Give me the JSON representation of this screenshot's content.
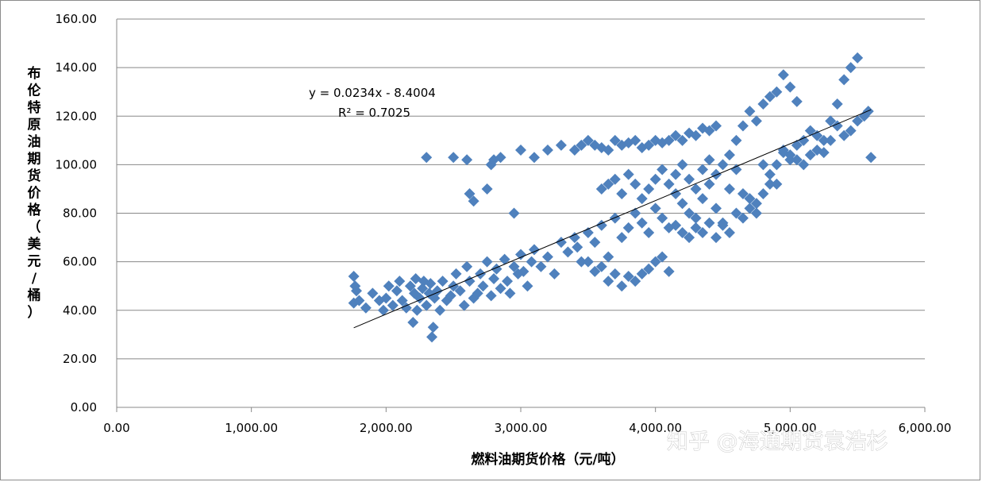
{
  "chart_data": {
    "type": "scatter",
    "title": "",
    "xlabel": "燃料油期货价格（元/吨）",
    "ylabel": "布伦特原油期货价格（美元/桶）",
    "xlim": [
      0,
      6000
    ],
    "ylim": [
      0,
      160
    ],
    "x_ticks": [
      "0.00",
      "1,000.00",
      "2,000.00",
      "3,000.00",
      "4,000.00",
      "5,000.00",
      "6,000.00"
    ],
    "y_ticks": [
      "0.00",
      "20.00",
      "40.00",
      "60.00",
      "80.00",
      "100.00",
      "120.00",
      "140.00",
      "160.00"
    ],
    "grid": "horizontal",
    "legend": "none",
    "marker": "diamond",
    "marker_color": "#4f81bd",
    "trendline": {
      "slope": 0.0234,
      "intercept": -8.4004,
      "x_range": [
        1760,
        5600
      ],
      "color": "#000000"
    },
    "annotations": {
      "equation": "y = 0.0234x - 8.4004",
      "r_squared": "R² = 0.7025"
    },
    "series": [
      {
        "x": [
          1760,
          1760,
          1770,
          1780,
          1800,
          1850,
          1900,
          1950,
          1980,
          2000,
          2020,
          2050,
          2080,
          2100,
          2120,
          2150,
          2180,
          2200,
          2210,
          2220,
          2230,
          2250,
          2270,
          2280,
          2300,
          2320,
          2330,
          2340,
          2350,
          2360,
          2380,
          2400,
          2420,
          2450,
          2480,
          2500,
          2520,
          2550,
          2580,
          2600,
          2620,
          2650,
          2680,
          2700,
          2720,
          2750,
          2780,
          2800,
          2820,
          2850,
          2880,
          2900,
          2920,
          2950,
          2980,
          3000,
          3020,
          3050,
          3080,
          3100,
          3150,
          3200,
          3250,
          3300,
          3350,
          3400,
          3420,
          3450,
          3500,
          3550,
          3600,
          3650,
          3700,
          3750,
          3800,
          3850,
          3900,
          3950,
          4000,
          4050,
          4100,
          4150,
          4200,
          4250,
          4300,
          4350,
          4400,
          4450,
          4500,
          4550,
          4600,
          4650,
          4700,
          4750,
          4800,
          4850,
          4900,
          4950,
          5000,
          5050,
          5100,
          5150,
          5200,
          5250,
          5300,
          5350,
          5400,
          5450,
          5500,
          5550,
          5580,
          5600
        ],
        "y": [
          43,
          54,
          50,
          48,
          44,
          41,
          47,
          44,
          40,
          45,
          50,
          42,
          48,
          52,
          44,
          41,
          50,
          35,
          47,
          53,
          40,
          45,
          49,
          52,
          42,
          47,
          51,
          29,
          33,
          45,
          48,
          40,
          52,
          44,
          46,
          50,
          55,
          48,
          42,
          58,
          52,
          45,
          47,
          55,
          50,
          60,
          46,
          53,
          57,
          49,
          61,
          52,
          47,
          58,
          55,
          63,
          56,
          50,
          60,
          65,
          58,
          62,
          55,
          68,
          64,
          70,
          66,
          60,
          72,
          68,
          75,
          62,
          78,
          70,
          74,
          80,
          76,
          72,
          82,
          78,
          74,
          88,
          84,
          80,
          78,
          86,
          92,
          82,
          76,
          90,
          98,
          88,
          86,
          84,
          100,
          96,
          92,
          106,
          102,
          108,
          110,
          114,
          112,
          110,
          118,
          116,
          112,
          114,
          118,
          120,
          122,
          103
        ]
      },
      {
        "x": [
          2300,
          2500,
          2600,
          2620,
          2650,
          2750,
          2780,
          2800,
          2850,
          2950,
          3000,
          3100,
          3200,
          3300,
          3400,
          3450,
          3500,
          3550,
          3600,
          3650,
          3700,
          3750,
          3800,
          3850,
          3900,
          3950,
          4000,
          4050,
          4100,
          4150,
          4200,
          4250,
          4300,
          4350,
          4400,
          4450
        ],
        "y": [
          103,
          103,
          102,
          88,
          85,
          90,
          100,
          102,
          103,
          80,
          106,
          103,
          106,
          108,
          106,
          108,
          110,
          108,
          107,
          106,
          110,
          108,
          109,
          110,
          107,
          108,
          110,
          109,
          110,
          112,
          110,
          113,
          112,
          115,
          114,
          116
        ]
      },
      {
        "x": [
          3600,
          3650,
          3700,
          3750,
          3800,
          3850,
          3900,
          3950,
          4000,
          4050,
          4100,
          4150,
          4200,
          4250,
          4300,
          4350,
          4400,
          4450,
          4500,
          4550,
          4600,
          4650,
          4700,
          4750,
          4800,
          4850,
          4900,
          4950,
          5000,
          5050
        ],
        "y": [
          90,
          92,
          94,
          88,
          96,
          92,
          86,
          90,
          94,
          98,
          92,
          96,
          100,
          94,
          90,
          98,
          102,
          96,
          100,
          104,
          110,
          116,
          122,
          118,
          125,
          128,
          130,
          137,
          132,
          126
        ]
      },
      {
        "x": [
          3500,
          3550,
          3600,
          3650,
          3700,
          3750,
          3800,
          3850,
          3900,
          3950,
          4000,
          4050,
          4100,
          4150,
          4200,
          4250,
          4300,
          4350,
          4400,
          4450,
          4500,
          4550,
          4600,
          4650,
          4700,
          4750,
          4800,
          4850,
          4900,
          4950,
          5000,
          5050,
          5100,
          5150,
          5200,
          5250,
          5300,
          5350,
          5400,
          5450,
          5500
        ],
        "y": [
          60,
          56,
          58,
          52,
          55,
          50,
          54,
          52,
          55,
          57,
          60,
          62,
          56,
          75,
          72,
          70,
          74,
          72,
          76,
          70,
          75,
          72,
          80,
          78,
          82,
          80,
          88,
          92,
          100,
          105,
          104,
          102,
          100,
          104,
          106,
          105,
          110,
          125,
          135,
          140,
          144
        ]
      }
    ]
  }
}
